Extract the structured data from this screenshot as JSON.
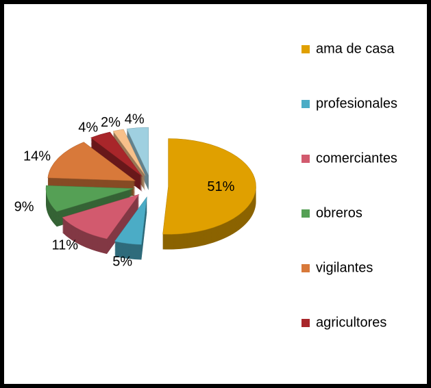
{
  "chart_data": {
    "type": "pie",
    "categories": [
      "ama de casa",
      "profesionales",
      "comerciantes",
      "obreros",
      "vigilantes",
      "agricultores",
      null,
      null
    ],
    "values": [
      51,
      5,
      11,
      9,
      14,
      4,
      2,
      4
    ],
    "value_labels": [
      "51%",
      "5%",
      "11%",
      "9%",
      "14%",
      "4%",
      "2%",
      "4%"
    ],
    "colors": [
      "#e0a000",
      "#4bacc6",
      "#d25a6e",
      "#55a055",
      "#d8793a",
      "#a8262a",
      "#f7c08a",
      "#9fd0e0"
    ],
    "legend": "right"
  }
}
